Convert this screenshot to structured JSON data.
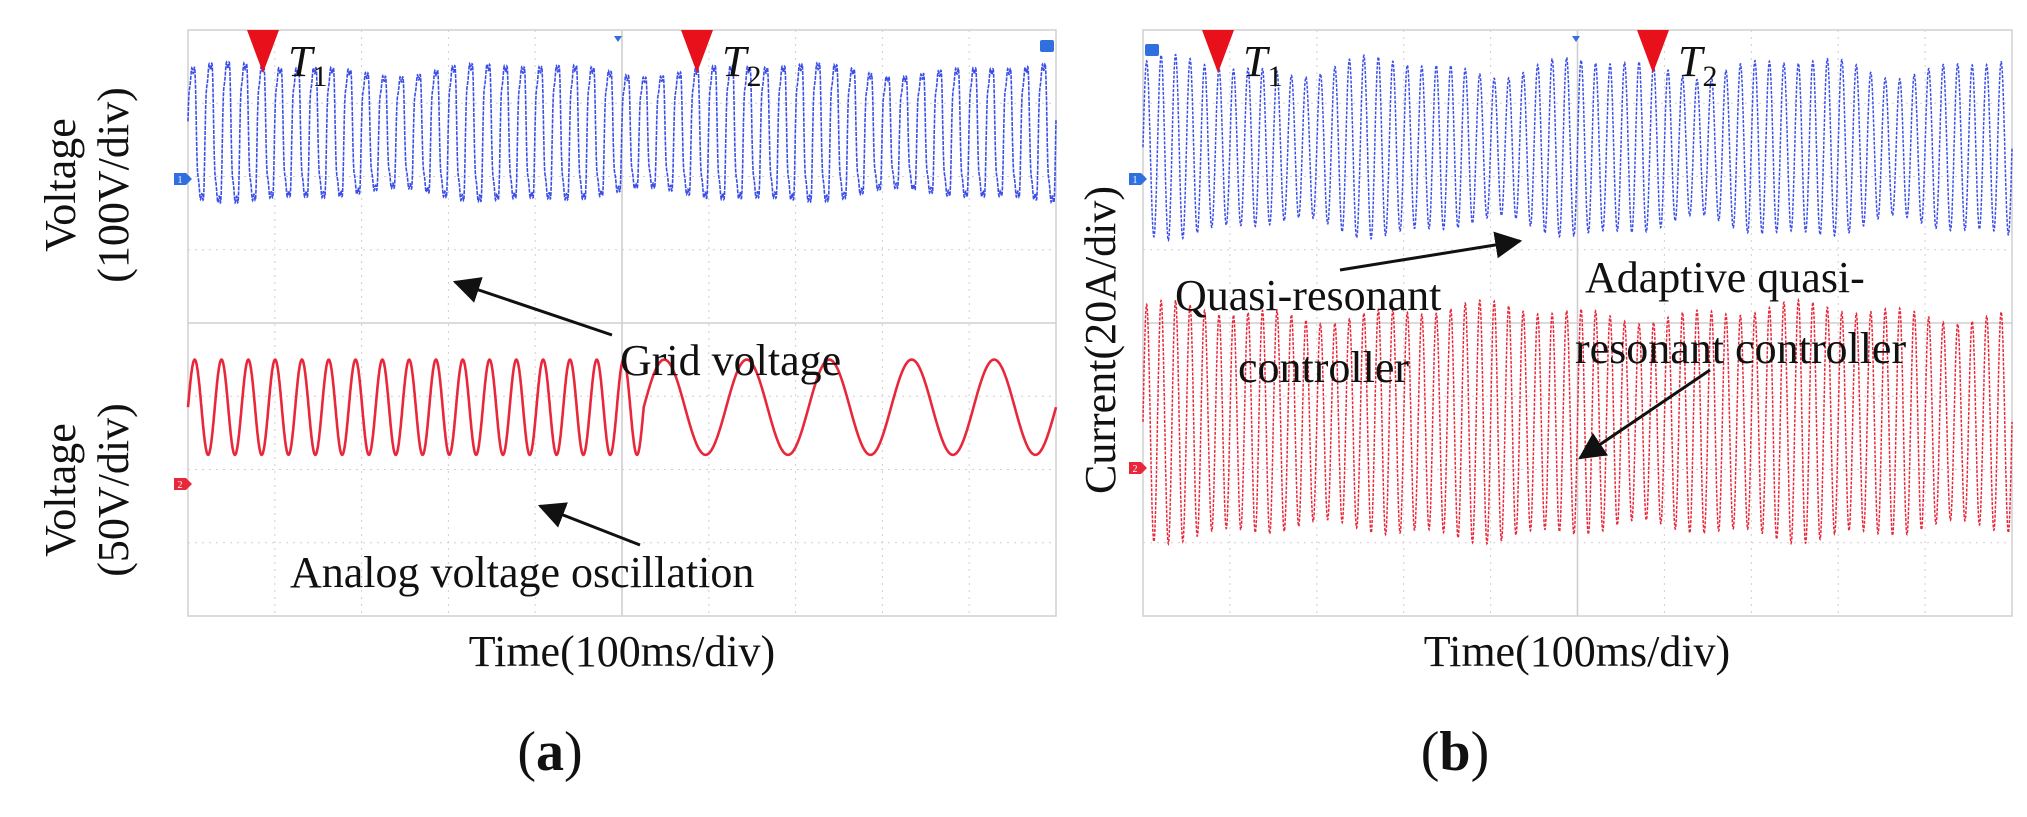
{
  "colors": {
    "voltage_trace": "#3b4fe8",
    "analog_trace": "#e8283a",
    "current_lower_trace": "#e8283a",
    "marker": "#e8101a",
    "grid": "#cfcfcf",
    "channel1_tag": "#2f6fe0",
    "channel2_tag": "#e8283a",
    "text": "#111111"
  },
  "chart_data": [
    {
      "panel_label": "(a)",
      "type": "line",
      "xlabel": "Time(100ms/div)",
      "x_unit": "ms",
      "x_per_div": 100,
      "x_divisions": 10,
      "channel_tags": [
        "1",
        "2"
      ],
      "markers": [
        {
          "label": "T",
          "subscript": "1",
          "x_div": 0.85
        },
        {
          "label": "T",
          "subscript": "2",
          "x_div": 5.85
        }
      ],
      "series": [
        {
          "name": "Grid voltage",
          "channel": "1",
          "ylabel_line1": "Voltage",
          "ylabel_line2": "(100V/div)",
          "y_per_div": 100,
          "waveform": "distorted sinusoid with harmonics",
          "cycles_visible": 50,
          "amplitude_div": 1.15,
          "offset_div": 2.6
        },
        {
          "name": "Analog voltage oscillation",
          "channel": "2",
          "ylabel_line1": "Voltage",
          "ylabel_line2": "(50V/div)",
          "y_per_div": 50,
          "waveform": "sinusoid, frequency drops after T2",
          "cycles_before_T2": 17,
          "cycles_after_T2": 5,
          "amplitude_div": 0.65,
          "offset_div": -1.15
        }
      ],
      "annotations": [
        {
          "text": "Grid voltage",
          "points_to": "Grid voltage trace"
        },
        {
          "text": "Analog voltage oscillation",
          "points_to": "Analog voltage trace"
        }
      ]
    },
    {
      "panel_label": "(b)",
      "type": "line",
      "xlabel": "Time(100ms/div)",
      "x_unit": "ms",
      "x_per_div": 100,
      "x_divisions": 10,
      "channel_tags": [
        "1",
        "2"
      ],
      "markers": [
        {
          "label": "T",
          "subscript": "1",
          "x_div": 0.85
        },
        {
          "label": "T",
          "subscript": "2",
          "x_div": 5.85
        }
      ],
      "ylabel": "Current(20A/div)",
      "y_per_div": 20,
      "series": [
        {
          "name": "Current (upper trace)",
          "channel": "1",
          "waveform": "sinusoid",
          "cycles_visible": 60,
          "amplitude_div": 1.1,
          "offset_div": 2.4
        },
        {
          "name": "Current (lower trace)",
          "channel": "2",
          "waveform": "sinusoid",
          "cycles_visible": 60,
          "amplitude_div": 1.5,
          "offset_div": -1.35
        }
      ],
      "annotations": [
        {
          "text_line1": "Quasi-resonant",
          "text_line2": "controller",
          "points_to": "Current (upper trace)"
        },
        {
          "text_line1": "Adaptive quasi-",
          "text_line2": "resonant controller",
          "points_to": "Current (lower trace)"
        }
      ]
    }
  ]
}
